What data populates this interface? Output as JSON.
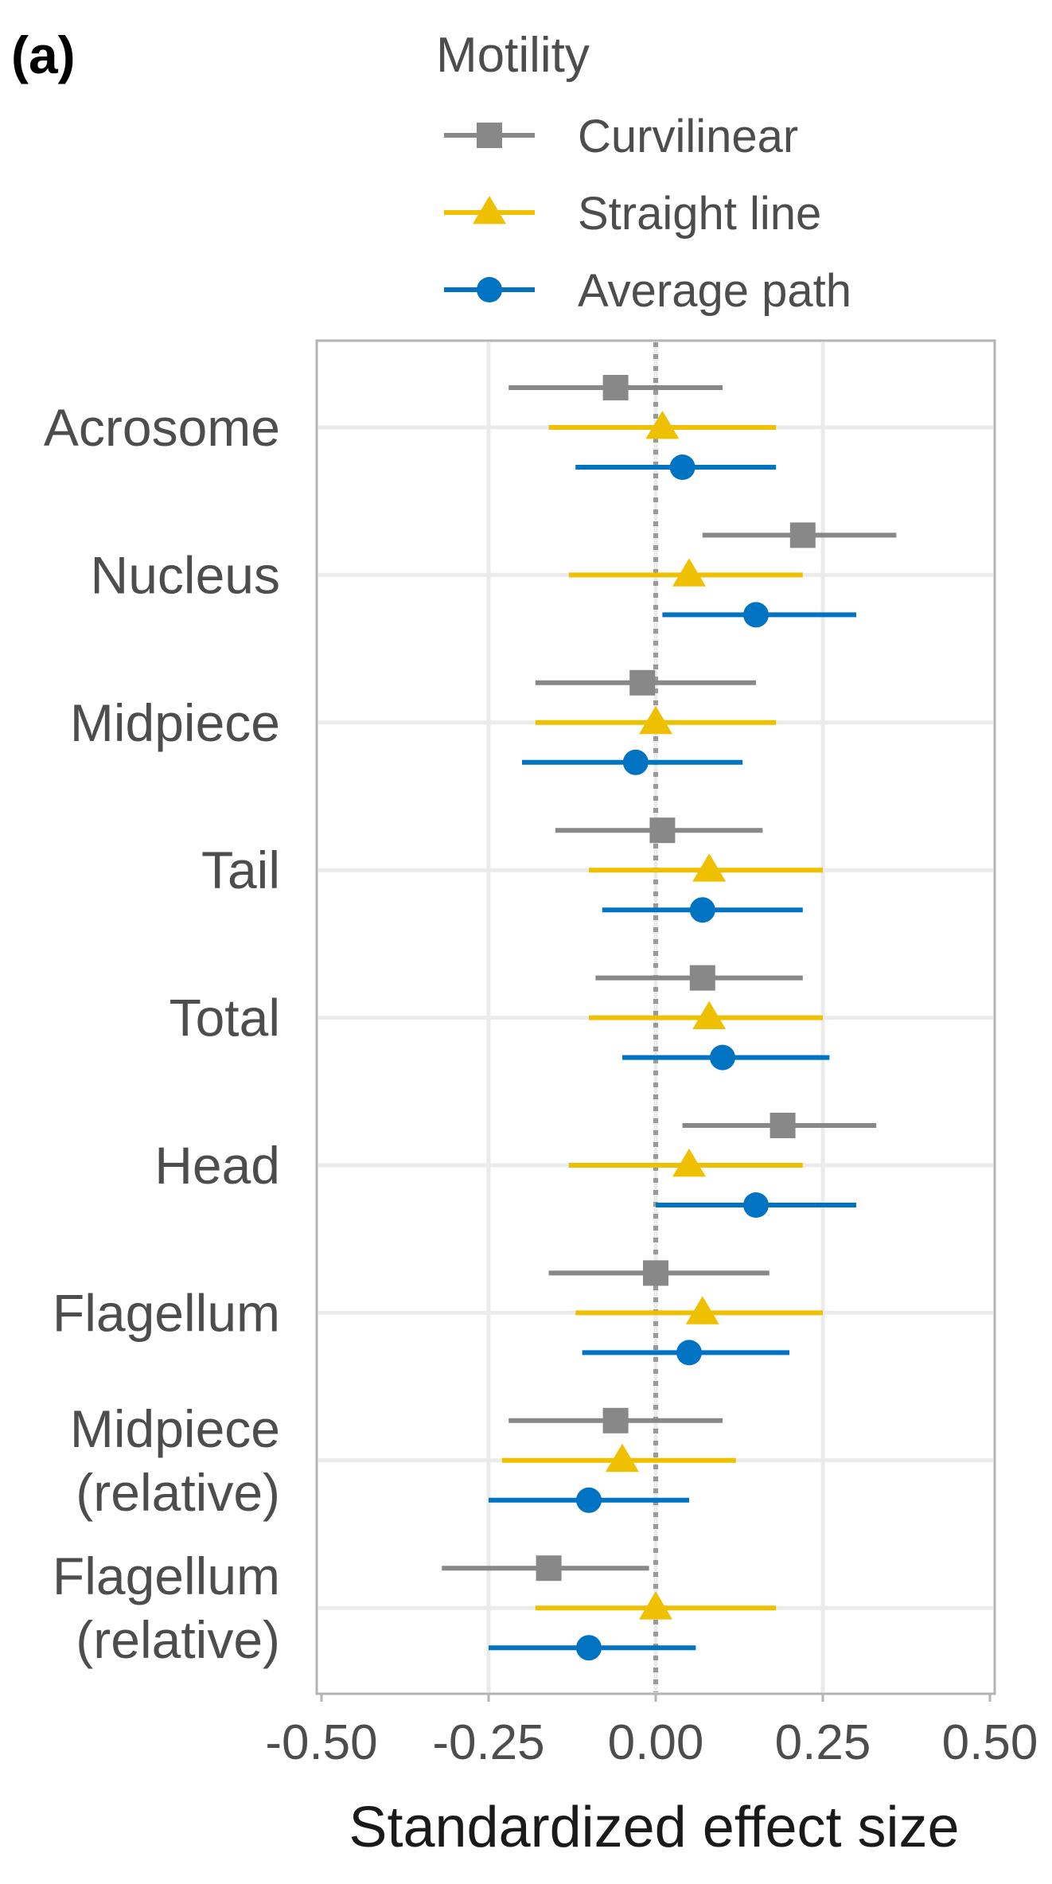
{
  "panel_label": "(a)",
  "chart_data": {
    "type": "forest",
    "title": "",
    "xlabel": "Standardized effect size",
    "ylabel": "",
    "xlim": [
      -0.5,
      0.5
    ],
    "xticks": [
      "-0.50",
      "-0.25",
      "0.00",
      "0.25",
      "0.50"
    ],
    "reference_line": 0,
    "grid": true,
    "legend": {
      "title": "Motility",
      "placement": "top",
      "entries": [
        "Curvilinear",
        "Straight line",
        "Average path"
      ]
    },
    "categories": [
      [
        "Acrosome"
      ],
      [
        "Nucleus"
      ],
      [
        "Midpiece"
      ],
      [
        "Tail"
      ],
      [
        "Total"
      ],
      [
        "Head"
      ],
      [
        "Flagellum"
      ],
      [
        "Midpiece",
        "(relative)"
      ],
      [
        "Flagellum",
        "(relative)"
      ]
    ],
    "series": [
      {
        "name": "Curvilinear",
        "color": "#888888",
        "marker": "square",
        "estimate": [
          -0.06,
          0.22,
          -0.02,
          0.01,
          0.07,
          0.19,
          0.0,
          -0.06,
          -0.16
        ],
        "ci_low": [
          -0.22,
          0.07,
          -0.18,
          -0.15,
          -0.09,
          0.04,
          -0.16,
          -0.22,
          -0.32
        ],
        "ci_high": [
          0.1,
          0.36,
          0.15,
          0.16,
          0.22,
          0.33,
          0.17,
          0.1,
          -0.01
        ]
      },
      {
        "name": "Straight line",
        "color": "#EFC000",
        "marker": "triangle",
        "estimate": [
          0.01,
          0.05,
          0.0,
          0.08,
          0.08,
          0.05,
          0.07,
          -0.05,
          0.0
        ],
        "ci_low": [
          -0.16,
          -0.13,
          -0.18,
          -0.1,
          -0.1,
          -0.13,
          -0.12,
          -0.23,
          -0.18
        ],
        "ci_high": [
          0.18,
          0.22,
          0.18,
          0.25,
          0.25,
          0.22,
          0.25,
          0.12,
          0.18
        ]
      },
      {
        "name": "Average path",
        "color": "#0073C2",
        "marker": "circle",
        "estimate": [
          0.04,
          0.15,
          -0.03,
          0.07,
          0.1,
          0.15,
          0.05,
          -0.1,
          -0.1
        ],
        "ci_low": [
          -0.12,
          0.01,
          -0.2,
          -0.08,
          -0.05,
          0.0,
          -0.11,
          -0.25,
          -0.25
        ],
        "ci_high": [
          0.18,
          0.3,
          0.13,
          0.22,
          0.26,
          0.3,
          0.2,
          0.05,
          0.06
        ]
      }
    ]
  }
}
